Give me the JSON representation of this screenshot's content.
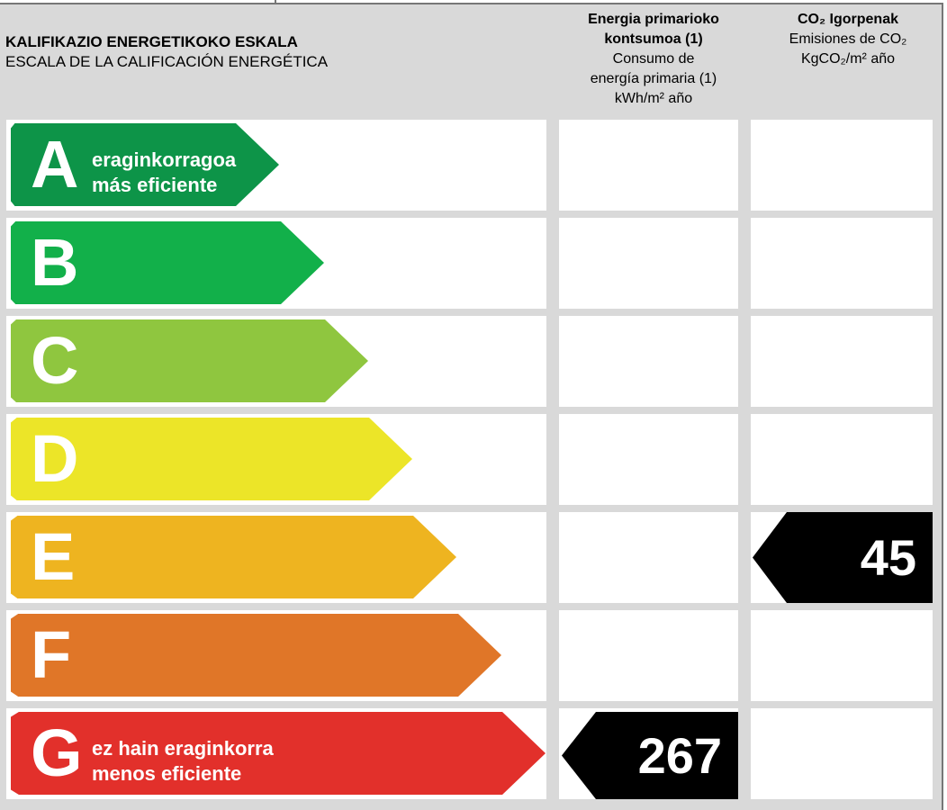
{
  "header": {
    "scale_title_eu": "KALIFIKAZIO ENERGETIKOKO ESKALA",
    "scale_title_es": "ESCALA DE LA CALIFICACIÓN ENERGÉTICA",
    "energy_col": {
      "line1": "Energia primarioko",
      "line2": "kontsumoa (1)",
      "line3": "Consumo de",
      "line4": "energía primaria (1)",
      "line5": "kWh/m² año"
    },
    "co2_col": {
      "line1": "CO₂ Igorpenak",
      "line2": "Emisiones de CO₂",
      "line3": "KgCO₂/m² año"
    }
  },
  "ratings": [
    {
      "letter": "A",
      "color": "#0d9448",
      "line1": "eraginkorragoa",
      "line2": "más eficiente"
    },
    {
      "letter": "B",
      "color": "#12b04a",
      "line1": "",
      "line2": ""
    },
    {
      "letter": "C",
      "color": "#8fc63f",
      "line1": "",
      "line2": ""
    },
    {
      "letter": "D",
      "color": "#ece528",
      "line1": "",
      "line2": ""
    },
    {
      "letter": "E",
      "color": "#eeb420",
      "line1": "",
      "line2": ""
    },
    {
      "letter": "F",
      "color": "#e07628",
      "line1": "",
      "line2": ""
    },
    {
      "letter": "G",
      "color": "#e2302b",
      "line1": "ez hain eraginkorra",
      "line2": "menos eficiente"
    }
  ],
  "values": {
    "energy_value": "267",
    "energy_rating": "G",
    "co2_value": "45",
    "co2_rating": "E"
  }
}
